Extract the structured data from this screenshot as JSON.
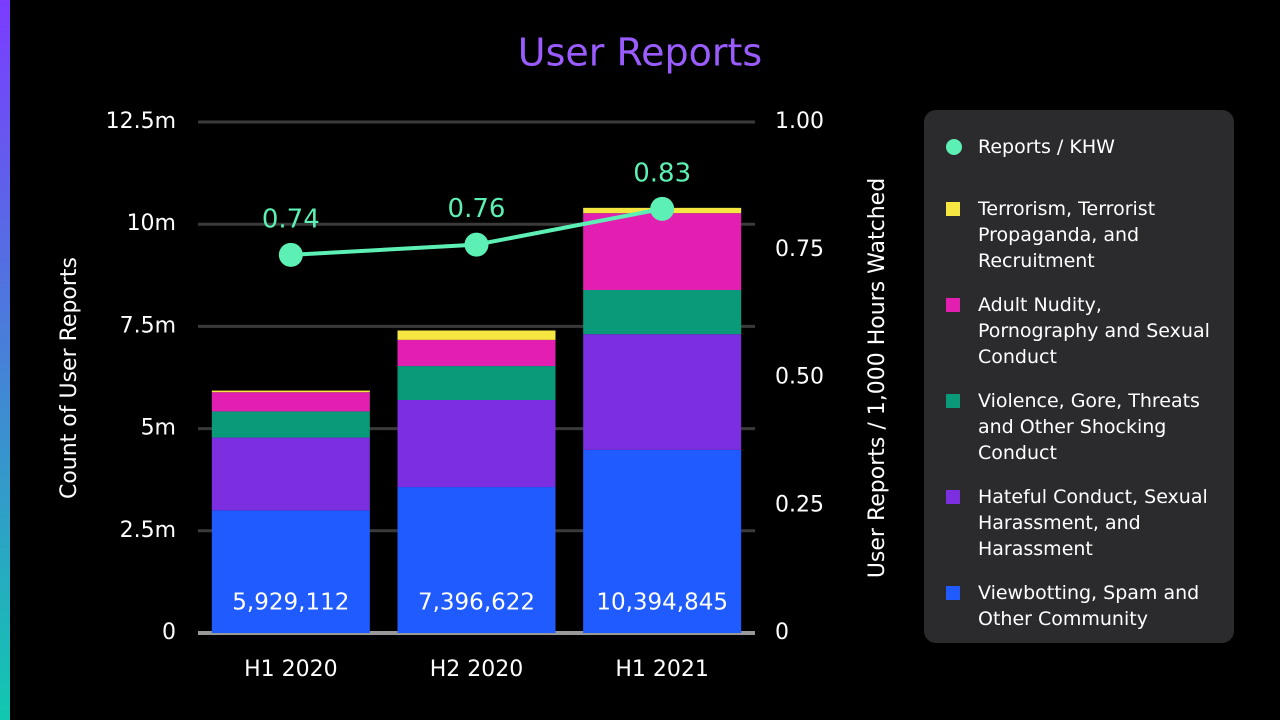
{
  "chart_data": {
    "type": "bar",
    "title": "User Reports",
    "ylabel": "Count of User Reports",
    "y2label": "User Reports / 1,000 Hours Watched",
    "categories": [
      "H1 2020",
      "H2 2020",
      "H1 2021"
    ],
    "stacked": true,
    "grid": true,
    "ylim": [
      0,
      12500000
    ],
    "yticks": [
      0,
      {
        "value": 2500000,
        "label": "2.5m"
      },
      {
        "value": 5000000,
        "label": "5m"
      },
      {
        "value": 7500000,
        "label": "7.5m"
      },
      {
        "value": 10000000,
        "label": "10m"
      },
      {
        "value": 12500000,
        "label": "12.5m"
      }
    ],
    "y2lim": [
      0,
      1
    ],
    "y2ticks": [
      0,
      {
        "value": 0.25,
        "label": "0.25"
      },
      {
        "value": 0.5,
        "label": "0.50"
      },
      0.75,
      {
        "value": 1,
        "label": "1.00"
      }
    ],
    "series": [
      {
        "name": "Reports / KHW",
        "type": "line",
        "axis": "y2",
        "color": "#5cf0b4",
        "values": [
          0.74,
          0.76,
          0.83
        ]
      },
      {
        "name": "Terrorism, Terrorist Propaganda, and Recruitment",
        "color": "#f5e642",
        "values": [
          40000,
          230000,
          130000
        ]
      },
      {
        "name": "Adult Nudity, Pornography and Sexual Conduct",
        "color": "#e21fb0",
        "values": [
          470000,
          640000,
          1880000
        ]
      },
      {
        "name": "Violence, Gore, Threats and Other Shocking Conduct",
        "color": "#0a9a7a",
        "values": [
          640000,
          830000,
          1080000
        ]
      },
      {
        "name": "Hateful Conduct, Sexual Harassment, and Harassment",
        "color": "#7b2fe0",
        "values": [
          1780000,
          2130000,
          2830000
        ]
      },
      {
        "name": "Viewbotting, Spam and Other Community",
        "color": "#1f5bff",
        "values": [
          3000000,
          3570000,
          4480000
        ]
      }
    ],
    "totals": [
      5929112,
      7396622,
      10394845
    ],
    "totals_labels": [
      "5,929,112",
      "7,396,622",
      "10,394,845"
    ]
  }
}
